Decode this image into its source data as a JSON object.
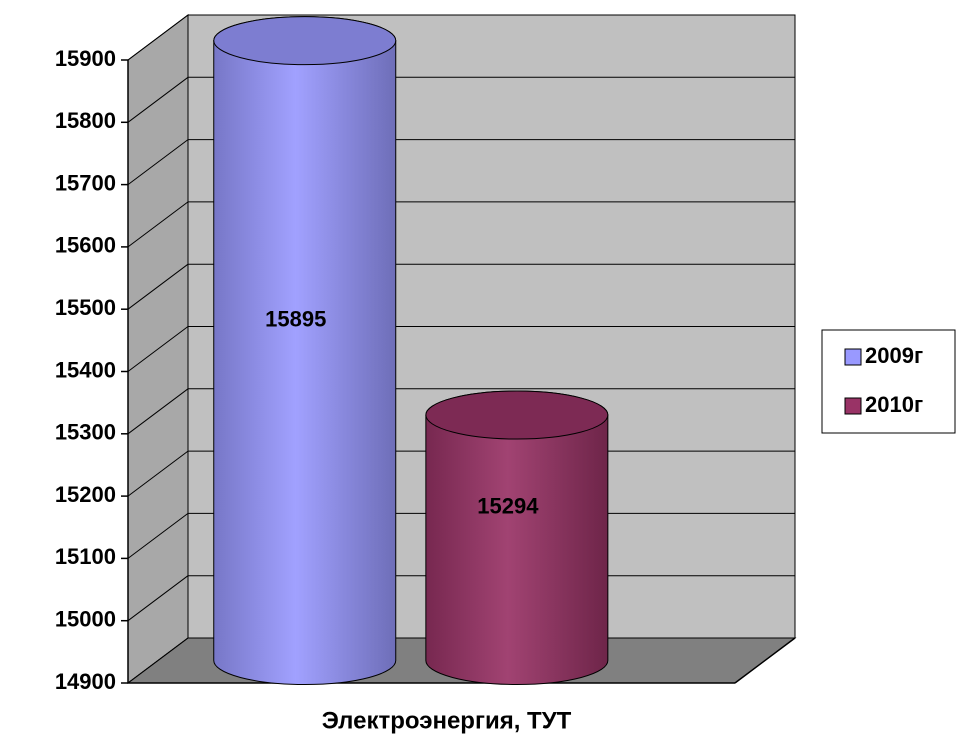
{
  "chart_data": {
    "type": "cylinder",
    "categories": [
      "Электроэнергия, ТУТ"
    ],
    "series": [
      {
        "name": "2009г",
        "color": "#9999ff",
        "values": [
          15895
        ]
      },
      {
        "name": "2010г",
        "color": "#993366",
        "values": [
          15294
        ]
      }
    ],
    "ylim": [
      14900,
      15900
    ],
    "yticks": [
      14900,
      15000,
      15100,
      15200,
      15300,
      15400,
      15500,
      15600,
      15700,
      15800,
      15900
    ],
    "grid": true,
    "legend": "right"
  }
}
